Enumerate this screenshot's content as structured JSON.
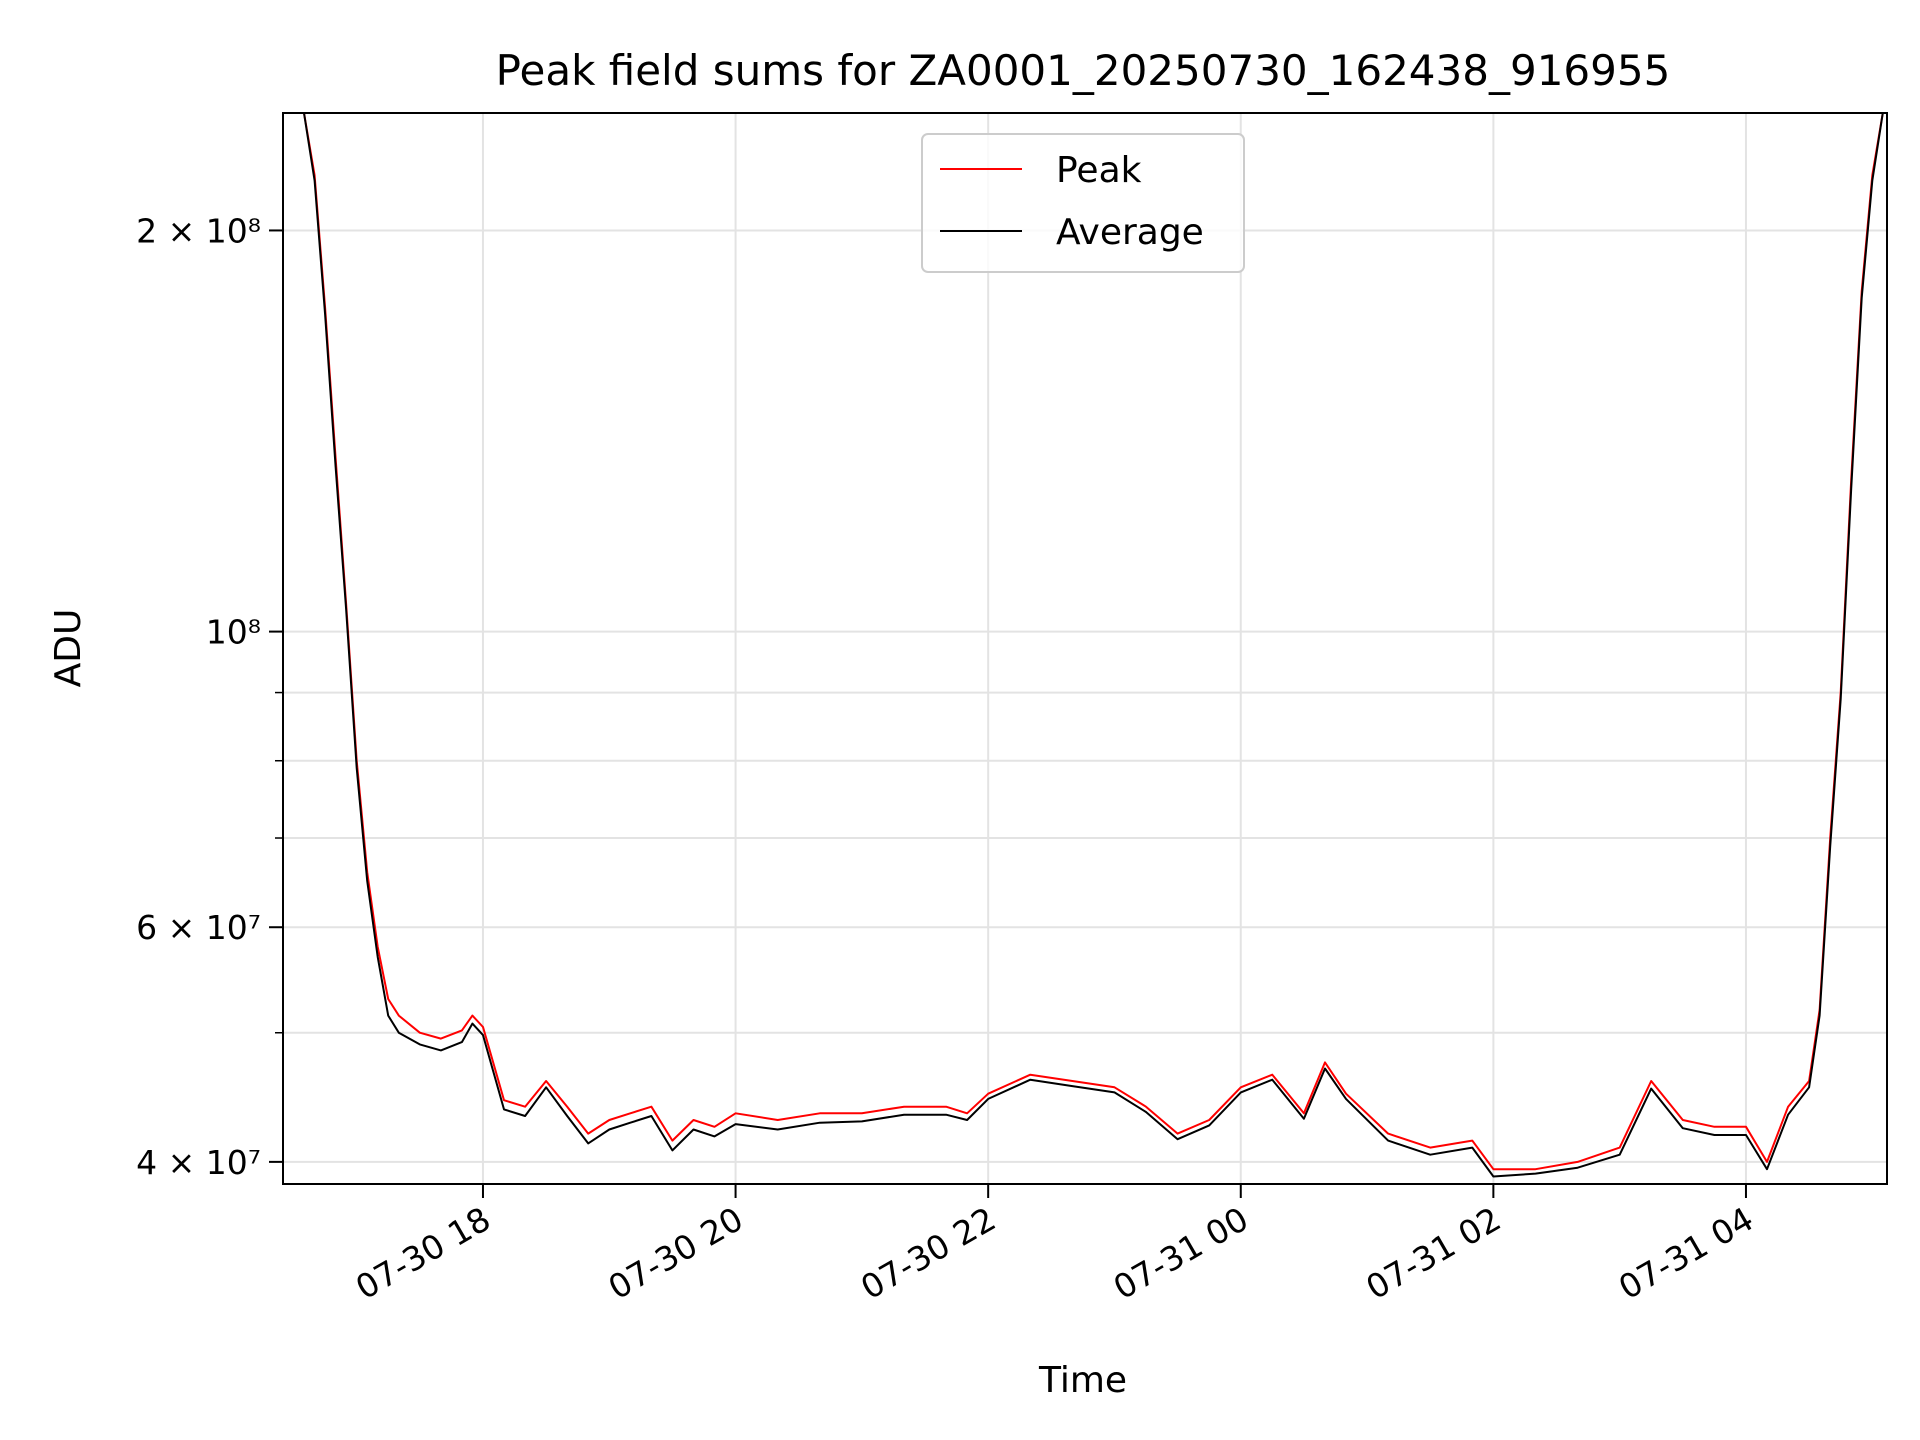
{
  "chart_data": {
    "type": "line",
    "title": "Peak field sums for ZA0001_20250730_162438_916955",
    "xlabel": "Time",
    "ylabel": "ADU",
    "yscale": "log",
    "grid": true,
    "legend_position": "top-center",
    "xlim": [
      "2025-07-30 16:25",
      "2025-07-31 05:07"
    ],
    "ylim": [
      38500000,
      245000000
    ],
    "x_ticks": [
      {
        "value": "2025-07-30 18:00",
        "label": "07-30 18"
      },
      {
        "value": "2025-07-30 20:00",
        "label": "07-30 20"
      },
      {
        "value": "2025-07-30 22:00",
        "label": "07-30 22"
      },
      {
        "value": "2025-07-31 00:00",
        "label": "07-31 00"
      },
      {
        "value": "2025-07-31 02:00",
        "label": "07-31 02"
      },
      {
        "value": "2025-07-31 04:00",
        "label": "07-31 04"
      }
    ],
    "y_ticks": [
      {
        "value": 40000000,
        "label": "4 × 10⁷"
      },
      {
        "value": 60000000,
        "label": "6 × 10⁷"
      },
      {
        "value": 100000000,
        "label": "10⁸"
      },
      {
        "value": 200000000,
        "label": "2 × 10⁸"
      }
    ],
    "y_minor_ticks": [
      50000000,
      70000000,
      80000000,
      90000000
    ],
    "series": [
      {
        "name": "Peak",
        "color": "#ff0000",
        "x": [
          "2025-07-30 16:35",
          "2025-07-30 16:40",
          "2025-07-30 16:45",
          "2025-07-30 16:50",
          "2025-07-30 16:55",
          "2025-07-30 17:00",
          "2025-07-30 17:05",
          "2025-07-30 17:10",
          "2025-07-30 17:15",
          "2025-07-30 17:20",
          "2025-07-30 17:30",
          "2025-07-30 17:40",
          "2025-07-30 17:50",
          "2025-07-30 17:55",
          "2025-07-30 18:00",
          "2025-07-30 18:10",
          "2025-07-30 18:20",
          "2025-07-30 18:30",
          "2025-07-30 18:40",
          "2025-07-30 18:50",
          "2025-07-30 19:00",
          "2025-07-30 19:10",
          "2025-07-30 19:20",
          "2025-07-30 19:30",
          "2025-07-30 19:40",
          "2025-07-30 19:50",
          "2025-07-30 20:00",
          "2025-07-30 20:20",
          "2025-07-30 20:40",
          "2025-07-30 21:00",
          "2025-07-30 21:20",
          "2025-07-30 21:40",
          "2025-07-30 21:50",
          "2025-07-30 22:00",
          "2025-07-30 22:20",
          "2025-07-30 22:40",
          "2025-07-30 23:00",
          "2025-07-30 23:15",
          "2025-07-30 23:30",
          "2025-07-30 23:45",
          "2025-07-31 00:00",
          "2025-07-31 00:15",
          "2025-07-31 00:30",
          "2025-07-31 00:40",
          "2025-07-31 00:50",
          "2025-07-31 01:10",
          "2025-07-31 01:30",
          "2025-07-31 01:50",
          "2025-07-31 02:00",
          "2025-07-31 02:20",
          "2025-07-31 02:40",
          "2025-07-31 03:00",
          "2025-07-31 03:15",
          "2025-07-31 03:30",
          "2025-07-31 03:45",
          "2025-07-31 04:00",
          "2025-07-31 04:10",
          "2025-07-31 04:20",
          "2025-07-31 04:30",
          "2025-07-31 04:35",
          "2025-07-31 04:40",
          "2025-07-31 04:45",
          "2025-07-31 04:50",
          "2025-07-31 04:55",
          "2025-07-31 05:00",
          "2025-07-31 05:05"
        ],
        "y": [
          245000000,
          220000000,
          175000000,
          135000000,
          105000000,
          80000000,
          66000000,
          58000000,
          53000000,
          51500000,
          50000000,
          49500000,
          50200000,
          51500000,
          50500000,
          44500000,
          44000000,
          46000000,
          44000000,
          42000000,
          43000000,
          43500000,
          44000000,
          41500000,
          43000000,
          42500000,
          43500000,
          43000000,
          43500000,
          43500000,
          44000000,
          44000000,
          43500000,
          45000000,
          46500000,
          46000000,
          45500000,
          44000000,
          42000000,
          43000000,
          45500000,
          46500000,
          43500000,
          47500000,
          45000000,
          42000000,
          41000000,
          41500000,
          39500000,
          39500000,
          40000000,
          41000000,
          46000000,
          43000000,
          42500000,
          42500000,
          40000000,
          44000000,
          46000000,
          52000000,
          70000000,
          90000000,
          130000000,
          180000000,
          220000000,
          245000000
        ]
      },
      {
        "name": "Average",
        "color": "#000000",
        "x": [
          "2025-07-30 16:35",
          "2025-07-30 16:40",
          "2025-07-30 16:45",
          "2025-07-30 16:50",
          "2025-07-30 16:55",
          "2025-07-30 17:00",
          "2025-07-30 17:05",
          "2025-07-30 17:10",
          "2025-07-30 17:15",
          "2025-07-30 17:20",
          "2025-07-30 17:30",
          "2025-07-30 17:40",
          "2025-07-30 17:50",
          "2025-07-30 17:55",
          "2025-07-30 18:00",
          "2025-07-30 18:10",
          "2025-07-30 18:20",
          "2025-07-30 18:30",
          "2025-07-30 18:40",
          "2025-07-30 18:50",
          "2025-07-30 19:00",
          "2025-07-30 19:10",
          "2025-07-30 19:20",
          "2025-07-30 19:30",
          "2025-07-30 19:40",
          "2025-07-30 19:50",
          "2025-07-30 20:00",
          "2025-07-30 20:20",
          "2025-07-30 20:40",
          "2025-07-30 21:00",
          "2025-07-30 21:20",
          "2025-07-30 21:40",
          "2025-07-30 21:50",
          "2025-07-30 22:00",
          "2025-07-30 22:20",
          "2025-07-30 22:40",
          "2025-07-30 23:00",
          "2025-07-30 23:15",
          "2025-07-30 23:30",
          "2025-07-30 23:45",
          "2025-07-31 00:00",
          "2025-07-31 00:15",
          "2025-07-31 00:30",
          "2025-07-31 00:40",
          "2025-07-31 00:50",
          "2025-07-31 01:10",
          "2025-07-31 01:30",
          "2025-07-31 01:50",
          "2025-07-31 02:00",
          "2025-07-31 02:20",
          "2025-07-31 02:40",
          "2025-07-31 03:00",
          "2025-07-31 03:15",
          "2025-07-31 03:30",
          "2025-07-31 03:45",
          "2025-07-31 04:00",
          "2025-07-31 04:10",
          "2025-07-31 04:20",
          "2025-07-31 04:30",
          "2025-07-31 04:35",
          "2025-07-31 04:40",
          "2025-07-31 04:45",
          "2025-07-31 04:50",
          "2025-07-31 04:55",
          "2025-07-31 05:00",
          "2025-07-31 05:05"
        ],
        "y": [
          245000000,
          218000000,
          173000000,
          133000000,
          104000000,
          79000000,
          65000000,
          57000000,
          51500000,
          50000000,
          49000000,
          48500000,
          49200000,
          50800000,
          49800000,
          43800000,
          43300000,
          45500000,
          43300000,
          41300000,
          42300000,
          42800000,
          43300000,
          40800000,
          42300000,
          41800000,
          42700000,
          42300000,
          42800000,
          42900000,
          43400000,
          43400000,
          43000000,
          44600000,
          46100000,
          45600000,
          45100000,
          43600000,
          41600000,
          42600000,
          45100000,
          46100000,
          43100000,
          47000000,
          44600000,
          41500000,
          40500000,
          41000000,
          39000000,
          39200000,
          39600000,
          40500000,
          45400000,
          42400000,
          41900000,
          41900000,
          39500000,
          43400000,
          45500000,
          51500000,
          69000000,
          89000000,
          128000000,
          178000000,
          218000000,
          245000000
        ]
      }
    ]
  }
}
